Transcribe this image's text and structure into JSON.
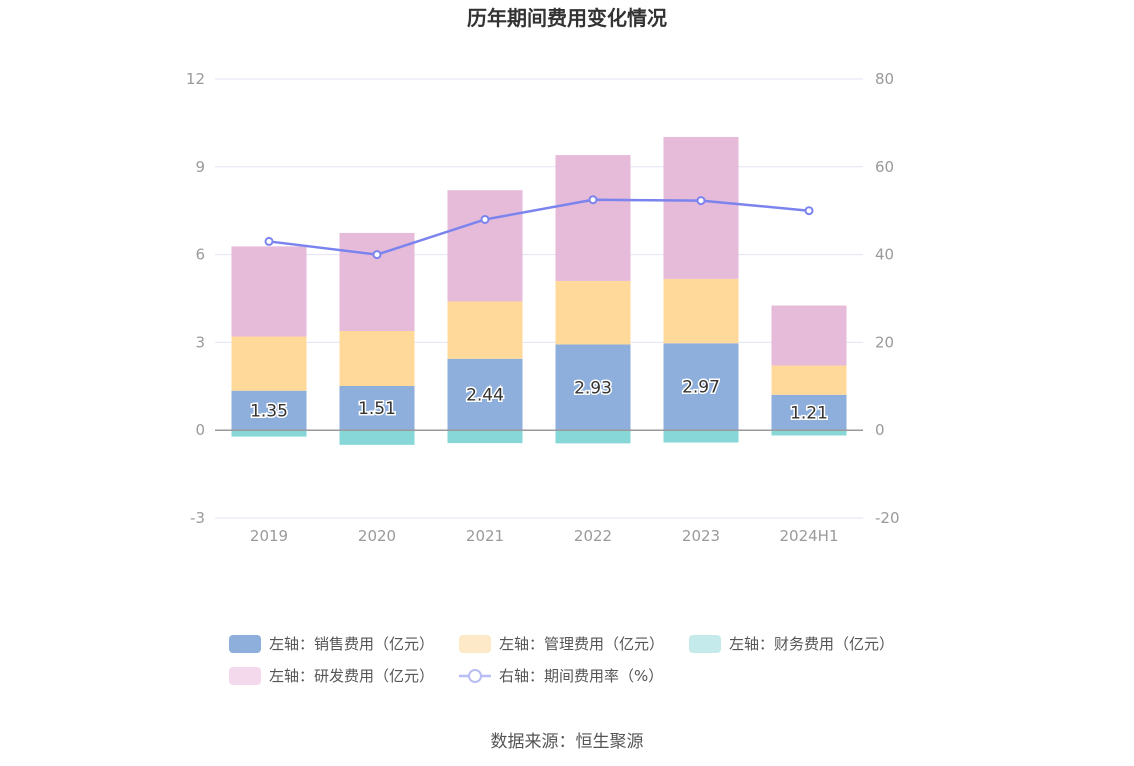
{
  "chart_data": {
    "type": "bar",
    "title": "历年期间费用变化情况",
    "categories": [
      "2019",
      "2020",
      "2021",
      "2022",
      "2023",
      "2024H1"
    ],
    "left_axis": {
      "min": -3,
      "max": 12,
      "ticks": [
        -3,
        0,
        3,
        6,
        9,
        12
      ]
    },
    "right_axis": {
      "min": -20,
      "max": 80,
      "ticks": [
        -20,
        0,
        20,
        40,
        60,
        80
      ]
    },
    "stacked": true,
    "grid": true,
    "legend_position": "bottom",
    "series": [
      {
        "name": "左轴：销售费用（亿元）",
        "axis": "left",
        "type": "bar",
        "color": "#8eaedb",
        "values": [
          1.35,
          1.51,
          2.44,
          2.93,
          2.97,
          1.21
        ],
        "labels": [
          "1.35",
          "1.51",
          "2.44",
          "2.93",
          "2.97",
          "1.21"
        ]
      },
      {
        "name": "左轴：管理费用（亿元）",
        "axis": "left",
        "type": "bar",
        "color": "#ffd99a",
        "values": [
          1.85,
          1.88,
          1.96,
          2.17,
          2.2,
          1.0
        ]
      },
      {
        "name": "左轴：财务费用（亿元）",
        "axis": "left",
        "type": "bar",
        "color": "#87d7d9",
        "values": [
          -0.22,
          -0.5,
          -0.44,
          -0.45,
          -0.42,
          -0.18
        ]
      },
      {
        "name": "左轴：研发费用（亿元）",
        "axis": "left",
        "type": "bar",
        "color": "#e6bad9",
        "values": [
          3.08,
          3.35,
          3.8,
          4.3,
          4.85,
          2.05
        ]
      },
      {
        "name": "右轴：期间费用率（%）",
        "axis": "right",
        "type": "line",
        "color": "#7b84ee",
        "values": [
          43,
          40,
          48,
          52.5,
          52.3,
          50
        ]
      }
    ],
    "source": "数据来源：恒生聚源"
  }
}
